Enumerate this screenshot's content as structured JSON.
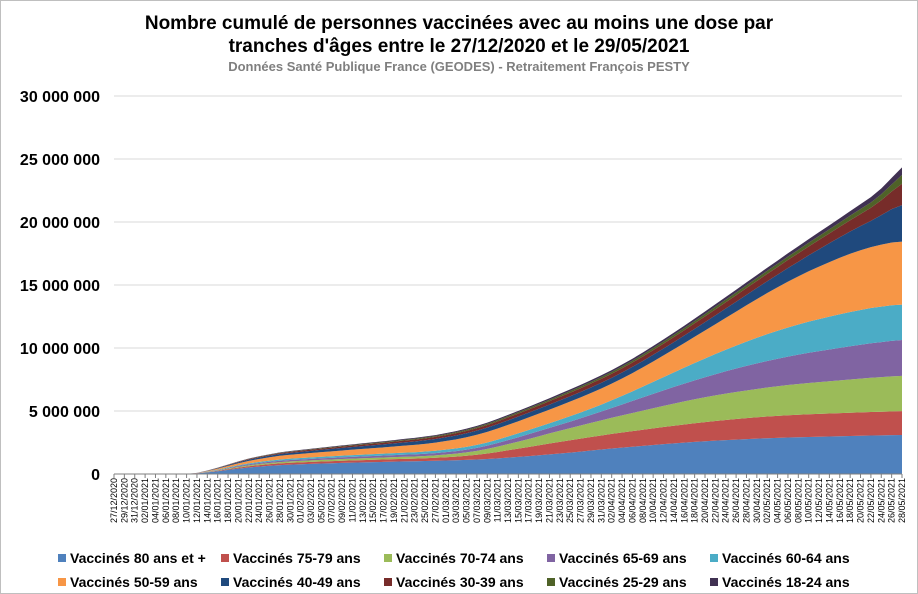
{
  "chart_data": {
    "type": "area",
    "stacked": true,
    "title_line1": "Nombre cumulé de personnes vaccinées avec au moins une dose par",
    "title_line2": "tranches d'âges entre le 27/12/2020 et le 29/05/2021",
    "subtitle": "Données Santé Publique France (GEODES) - Retraitement François PESTY",
    "ylim": [
      0,
      30000000
    ],
    "yticks": [
      0,
      5000000,
      10000000,
      15000000,
      20000000,
      25000000,
      30000000
    ],
    "ytick_labels": [
      "0",
      "5 000 000",
      "10 000 000",
      "15 000 000",
      "20 000 000",
      "25 000 000",
      "30 000 000"
    ],
    "x_labels": [
      "27/12/2020",
      "29/12/2020",
      "31/12/2020",
      "02/01/2021",
      "04/01/2021",
      "06/01/2021",
      "08/01/2021",
      "10/01/2021",
      "12/01/2021",
      "14/01/2021",
      "16/01/2021",
      "18/01/2021",
      "20/01/2021",
      "22/01/2021",
      "24/01/2021",
      "26/01/2021",
      "28/01/2021",
      "30/01/2021",
      "01/02/2021",
      "03/02/2021",
      "05/02/2021",
      "07/02/2021",
      "09/02/2021",
      "11/02/2021",
      "13/02/2021",
      "15/02/2021",
      "17/02/2021",
      "19/02/2021",
      "21/02/2021",
      "23/02/2021",
      "25/02/2021",
      "27/02/2021",
      "01/03/2021",
      "03/03/2021",
      "05/03/2021",
      "07/03/2021",
      "09/03/2021",
      "11/03/2021",
      "13/03/2021",
      "15/03/2021",
      "17/03/2021",
      "19/03/2021",
      "21/03/2021",
      "23/03/2021",
      "25/03/2021",
      "27/03/2021",
      "29/03/2021",
      "31/03/2021",
      "02/04/2021",
      "04/04/2021",
      "06/04/2021",
      "08/04/2021",
      "10/04/2021",
      "12/04/2021",
      "14/04/2021",
      "16/04/2021",
      "18/04/2021",
      "20/04/2021",
      "22/04/2021",
      "24/04/2021",
      "26/04/2021",
      "28/04/2021",
      "30/04/2021",
      "02/05/2021",
      "04/05/2021",
      "06/05/2021",
      "08/05/2021",
      "10/05/2021",
      "12/05/2021",
      "14/05/2021",
      "16/05/2021",
      "18/05/2021",
      "20/05/2021",
      "22/05/2021",
      "24/05/2021",
      "26/05/2021",
      "28/05/2021"
    ],
    "grid": true,
    "legend_position": "bottom",
    "series": [
      {
        "name": "Vaccinés 80 ans et +",
        "color": "#4f81bd",
        "values": [
          0,
          0,
          0,
          0,
          0,
          0,
          0,
          10000,
          50000,
          130000,
          220000,
          330000,
          430000,
          520000,
          590000,
          650000,
          700000,
          740000,
          770000,
          800000,
          830000,
          850000,
          880000,
          900000,
          920000,
          940000,
          960000,
          980000,
          1000000,
          1010000,
          1030000,
          1050000,
          1070000,
          1090000,
          1120000,
          1150000,
          1190000,
          1240000,
          1300000,
          1360000,
          1420000,
          1490000,
          1560000,
          1630000,
          1700000,
          1780000,
          1860000,
          1940000,
          2020000,
          2090000,
          2160000,
          2230000,
          2300000,
          2370000,
          2430000,
          2490000,
          2550000,
          2600000,
          2650000,
          2690000,
          2730000,
          2770000,
          2810000,
          2840000,
          2870000,
          2900000,
          2920000,
          2940000,
          2960000,
          2980000,
          3000000,
          3020000,
          3040000,
          3060000,
          3070000,
          3090000,
          3100000
        ]
      },
      {
        "name": "Vaccinés 75-79 ans",
        "color": "#c0504d",
        "values": [
          0,
          0,
          0,
          0,
          0,
          0,
          0,
          0,
          5000,
          20000,
          40000,
          60000,
          80000,
          100000,
          115000,
          130000,
          140000,
          150000,
          155000,
          160000,
          165000,
          170000,
          175000,
          180000,
          185000,
          190000,
          195000,
          200000,
          205000,
          210000,
          220000,
          235000,
          260000,
          290000,
          330000,
          380000,
          440000,
          510000,
          580000,
          650000,
          720000,
          790000,
          860000,
          920000,
          980000,
          1030000,
          1080000,
          1120000,
          1160000,
          1200000,
          1240000,
          1280000,
          1320000,
          1360000,
          1400000,
          1440000,
          1480000,
          1520000,
          1560000,
          1600000,
          1630000,
          1660000,
          1690000,
          1720000,
          1740000,
          1760000,
          1780000,
          1800000,
          1810000,
          1820000,
          1830000,
          1840000,
          1850000,
          1860000,
          1870000,
          1880000,
          1890000
        ]
      },
      {
        "name": "Vaccinés 70-74 ans",
        "color": "#9bbb59",
        "values": [
          0,
          0,
          0,
          0,
          0,
          0,
          0,
          0,
          5000,
          15000,
          30000,
          45000,
          60000,
          75000,
          85000,
          95000,
          105000,
          110000,
          115000,
          120000,
          125000,
          130000,
          135000,
          140000,
          145000,
          150000,
          155000,
          160000,
          165000,
          170000,
          180000,
          195000,
          215000,
          240000,
          270000,
          310000,
          360000,
          420000,
          490000,
          560000,
          640000,
          720000,
          800000,
          880000,
          960000,
          1040000,
          1120000,
          1200000,
          1280000,
          1360000,
          1440000,
          1520000,
          1600000,
          1680000,
          1760000,
          1830000,
          1900000,
          1970000,
          2030000,
          2090000,
          2150000,
          2200000,
          2250000,
          2300000,
          2350000,
          2400000,
          2440000,
          2480000,
          2520000,
          2560000,
          2600000,
          2640000,
          2680000,
          2720000,
          2750000,
          2780000,
          2800000
        ]
      },
      {
        "name": "Vaccinés 65-69 ans",
        "color": "#8064a2",
        "values": [
          0,
          0,
          0,
          0,
          0,
          0,
          0,
          0,
          5000,
          15000,
          30000,
          45000,
          60000,
          75000,
          85000,
          95000,
          105000,
          110000,
          115000,
          120000,
          125000,
          130000,
          135000,
          140000,
          145000,
          150000,
          155000,
          160000,
          165000,
          170000,
          175000,
          180000,
          190000,
          200000,
          215000,
          235000,
          260000,
          290000,
          320000,
          350000,
          380000,
          410000,
          440000,
          480000,
          520000,
          570000,
          630000,
          700000,
          780000,
          870000,
          960000,
          1050000,
          1140000,
          1230000,
          1320000,
          1410000,
          1500000,
          1590000,
          1680000,
          1770000,
          1860000,
          1950000,
          2030000,
          2110000,
          2190000,
          2260000,
          2330000,
          2400000,
          2460000,
          2520000,
          2580000,
          2640000,
          2690000,
          2740000,
          2780000,
          2820000,
          2850000
        ]
      },
      {
        "name": "Vaccinés 60-64 ans",
        "color": "#4bacc6",
        "values": [
          0,
          0,
          0,
          0,
          0,
          0,
          0,
          0,
          5000,
          15000,
          30000,
          45000,
          60000,
          75000,
          85000,
          95000,
          105000,
          110000,
          115000,
          120000,
          125000,
          130000,
          135000,
          140000,
          145000,
          150000,
          155000,
          160000,
          165000,
          170000,
          180000,
          190000,
          200000,
          210000,
          220000,
          235000,
          250000,
          270000,
          290000,
          310000,
          330000,
          350000,
          370000,
          400000,
          430000,
          460000,
          500000,
          550000,
          610000,
          680000,
          760000,
          850000,
          950000,
          1050000,
          1160000,
          1270000,
          1380000,
          1490000,
          1600000,
          1710000,
          1820000,
          1930000,
          2030000,
          2130000,
          2220000,
          2310000,
          2390000,
          2470000,
          2540000,
          2610000,
          2670000,
          2720000,
          2760000,
          2790000,
          2810000,
          2820000,
          2800000
        ]
      },
      {
        "name": "Vaccinés 50-59 ans",
        "color": "#f79646",
        "values": [
          0,
          0,
          0,
          0,
          0,
          0,
          0,
          0,
          10000,
          40000,
          80000,
          120000,
          160000,
          200000,
          230000,
          260000,
          290000,
          310000,
          330000,
          350000,
          370000,
          390000,
          410000,
          430000,
          450000,
          470000,
          490000,
          520000,
          550000,
          580000,
          610000,
          640000,
          680000,
          720000,
          760000,
          800000,
          840000,
          880000,
          920000,
          960000,
          1000000,
          1040000,
          1080000,
          1120000,
          1160000,
          1200000,
          1240000,
          1280000,
          1320000,
          1380000,
          1450000,
          1530000,
          1620000,
          1720000,
          1830000,
          1950000,
          2080000,
          2220000,
          2370000,
          2530000,
          2700000,
          2880000,
          3070000,
          3260000,
          3450000,
          3640000,
          3820000,
          4000000,
          4170000,
          4330000,
          4480000,
          4620000,
          4740000,
          4840000,
          4920000,
          4980000,
          5000000
        ]
      },
      {
        "name": "Vaccinés 40-49 ans",
        "color": "#1f497d",
        "values": [
          0,
          0,
          0,
          0,
          0,
          0,
          0,
          0,
          5000,
          20000,
          40000,
          60000,
          80000,
          100000,
          115000,
          130000,
          140000,
          150000,
          160000,
          170000,
          180000,
          190000,
          200000,
          210000,
          220000,
          230000,
          240000,
          250000,
          260000,
          270000,
          280000,
          290000,
          300000,
          310000,
          320000,
          330000,
          340000,
          350000,
          360000,
          370000,
          380000,
          390000,
          400000,
          410000,
          420000,
          430000,
          440000,
          450000,
          460000,
          475000,
          490000,
          510000,
          530000,
          550000,
          570000,
          600000,
          630000,
          660000,
          700000,
          740000,
          780000,
          830000,
          880000,
          940000,
          1000000,
          1080000,
          1170000,
          1270000,
          1380000,
          1500000,
          1630000,
          1770000,
          1920000,
          2080000,
          2350000,
          2650000,
          2900000
        ]
      },
      {
        "name": "Vaccinés 30-39 ans",
        "color": "#772c2a",
        "values": [
          0,
          0,
          0,
          0,
          0,
          0,
          0,
          0,
          3000,
          10000,
          20000,
          30000,
          40000,
          50000,
          58000,
          65000,
          72000,
          78000,
          84000,
          90000,
          96000,
          102000,
          108000,
          114000,
          120000,
          126000,
          132000,
          138000,
          144000,
          150000,
          156000,
          162000,
          170000,
          180000,
          190000,
          200000,
          210000,
          220000,
          230000,
          240000,
          250000,
          260000,
          270000,
          280000,
          290000,
          300000,
          310000,
          320000,
          330000,
          340000,
          350000,
          360000,
          375000,
          390000,
          405000,
          420000,
          440000,
          460000,
          480000,
          500000,
          520000,
          540000,
          560000,
          585000,
          610000,
          640000,
          670000,
          700000,
          740000,
          780000,
          830000,
          890000,
          960000,
          1040000,
          1180000,
          1400000,
          1700000
        ]
      },
      {
        "name": "Vaccinés 25-29 ans",
        "color": "#4f6228",
        "values": [
          0,
          0,
          0,
          0,
          0,
          0,
          0,
          0,
          1000,
          4000,
          8000,
          12000,
          16000,
          20000,
          23000,
          26000,
          29000,
          32000,
          35000,
          38000,
          41000,
          44000,
          47000,
          50000,
          53000,
          56000,
          59000,
          62000,
          65000,
          68000,
          71000,
          74000,
          78000,
          82000,
          86000,
          90000,
          94000,
          98000,
          102000,
          106000,
          110000,
          114000,
          118000,
          122000,
          126000,
          130000,
          134000,
          138000,
          142000,
          146000,
          150000,
          155000,
          160000,
          166000,
          172000,
          178000,
          185000,
          192000,
          200000,
          208000,
          216000,
          225000,
          234000,
          244000,
          254000,
          266000,
          278000,
          292000,
          306000,
          322000,
          340000,
          362000,
          390000,
          420000,
          470000,
          560000,
          700000
        ]
      },
      {
        "name": "Vaccinés 18-24 ans",
        "color": "#403152",
        "values": [
          0,
          0,
          0,
          0,
          0,
          0,
          0,
          0,
          1000,
          4000,
          8000,
          12000,
          16000,
          20000,
          23000,
          26000,
          29000,
          32000,
          35000,
          38000,
          41000,
          44000,
          47000,
          50000,
          53000,
          56000,
          59000,
          62000,
          65000,
          68000,
          71000,
          74000,
          78000,
          82000,
          86000,
          90000,
          94000,
          98000,
          102000,
          106000,
          110000,
          114000,
          118000,
          122000,
          126000,
          130000,
          134000,
          138000,
          142000,
          146000,
          150000,
          155000,
          160000,
          166000,
          172000,
          178000,
          185000,
          192000,
          200000,
          208000,
          216000,
          225000,
          234000,
          244000,
          254000,
          266000,
          278000,
          292000,
          306000,
          322000,
          340000,
          362000,
          390000,
          420000,
          460000,
          520000,
          600000
        ]
      }
    ]
  },
  "legend_rows": [
    [
      {
        "label": "Vaccinés 80 ans et +",
        "color": "#4f81bd"
      },
      {
        "label": "Vaccinés 75-79 ans",
        "color": "#c0504d"
      },
      {
        "label": "Vaccinés 70-74 ans",
        "color": "#9bbb59"
      },
      {
        "label": "Vaccinés 65-69 ans",
        "color": "#8064a2"
      },
      {
        "label": "Vaccinés 60-64 ans",
        "color": "#4bacc6"
      }
    ],
    [
      {
        "label": "Vaccinés 50-59 ans",
        "color": "#f79646"
      },
      {
        "label": "Vaccinés 40-49 ans",
        "color": "#1f497d"
      },
      {
        "label": "Vaccinés 30-39 ans",
        "color": "#772c2a"
      },
      {
        "label": "Vaccinés 25-29 ans",
        "color": "#4f6228"
      },
      {
        "label": "Vaccinés 18-24 ans",
        "color": "#403152"
      }
    ]
  ]
}
